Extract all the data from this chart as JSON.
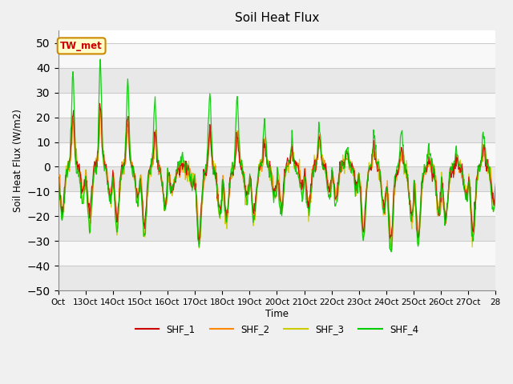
{
  "title": "Soil Heat Flux",
  "ylabel": "Soil Heat Flux (W/m2)",
  "xlabel": "Time",
  "ylim": [
    -50,
    55
  ],
  "fig_facecolor": "#f0f0f0",
  "plot_facecolor": "#f0f0f0",
  "colors": {
    "SHF_1": "#cc0000",
    "SHF_2": "#ff8800",
    "SHF_3": "#cccc00",
    "SHF_4": "#00cc00"
  },
  "tick_labels": [
    "Oct",
    "13Oct",
    "14Oct",
    "15Oct",
    "16Oct",
    "17Oct",
    "18Oct",
    "19Oct",
    "20Oct",
    "21Oct",
    "22Oct",
    "23Oct",
    "24Oct",
    "25Oct",
    "26Oct",
    "27Oct",
    "28"
  ],
  "annotation_text": "TW_met",
  "n_days": 16,
  "samples_per_day": 48,
  "seed": 12345
}
